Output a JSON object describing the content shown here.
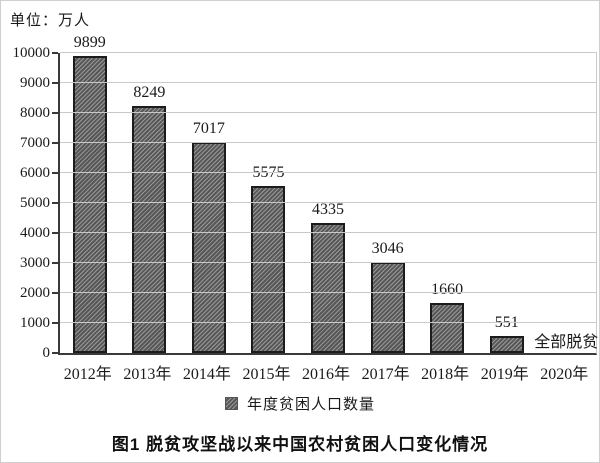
{
  "unit_label": "单位：万人",
  "caption": "图1  脱贫攻坚战以来中国农村贫困人口变化情况",
  "chart_data": {
    "type": "bar",
    "title": "图1 脱贫攻坚战以来中国农村贫困人口变化情况",
    "unit": "万人",
    "categories": [
      "2012年",
      "2013年",
      "2014年",
      "2015年",
      "2016年",
      "2017年",
      "2018年",
      "2019年",
      "2020年"
    ],
    "series": [
      {
        "name": "年度贫困人口数量",
        "values": [
          9899,
          8249,
          7017,
          5575,
          4335,
          3046,
          1660,
          551,
          null
        ]
      }
    ],
    "value_labels": [
      "9899",
      "8249",
      "7017",
      "5575",
      "4335",
      "3046",
      "1660",
      "551",
      ""
    ],
    "annotations": [
      {
        "text": "全部脱贫",
        "category": "2020年",
        "y": 0
      }
    ],
    "legend": [
      "年度贫困人口数量"
    ],
    "legend_position": "bottom-center",
    "ylim": [
      0,
      10000
    ],
    "ytick_step": 1000,
    "yticks": [
      0,
      1000,
      2000,
      3000,
      4000,
      5000,
      6000,
      7000,
      8000,
      9000,
      10000
    ],
    "grid": "horizontal"
  },
  "colors": {
    "bar_hatch_dark": "#575757",
    "bar_hatch_light": "#989898",
    "bar_border": "#1c1c1c",
    "gridline": "#c9c9c9",
    "axis": "#3a3a3a",
    "text": "#1a1a1a",
    "figure_border": "#cfcfcf",
    "background": "#ffffff"
  }
}
